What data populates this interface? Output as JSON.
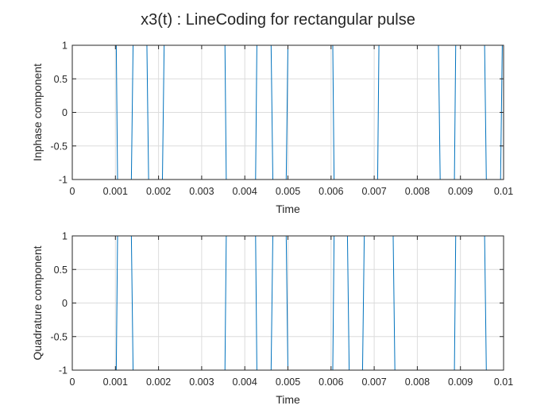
{
  "figure_title": "x3(t) : LineCoding for rectangular pulse",
  "colors": {
    "line": "#0072BD",
    "grid": "#dcdcdc",
    "axis": "#262626"
  },
  "chart_data": [
    {
      "type": "line",
      "title": "",
      "xlabel": "Time",
      "ylabel": "Inphase component",
      "xlim": [
        0,
        0.01
      ],
      "ylim": [
        -1,
        1
      ],
      "xticks": [
        0,
        0.001,
        0.002,
        0.003,
        0.004,
        0.005,
        0.006,
        0.007,
        0.008,
        0.009,
        0.01
      ],
      "xtick_labels": [
        "0",
        "0.001",
        "0.002",
        "0.003",
        "0.004",
        "0.005",
        "0.006",
        "0.007",
        "0.008",
        "0.009",
        "0.01"
      ],
      "yticks": [
        -1,
        -0.5,
        0,
        0.5,
        1
      ],
      "ytick_labels": [
        "-1",
        "-0.5",
        "0",
        "0.5",
        "1"
      ],
      "grid": true,
      "series": [
        {
          "x": [
            0,
            0.00102,
            0.00105,
            0.00137,
            0.00141,
            0.00173,
            0.00177,
            0.00209,
            0.00213,
            0.00354,
            0.00357,
            0.00425,
            0.00428,
            0.00461,
            0.00465,
            0.00496,
            0.005,
            0.00604,
            0.00607,
            0.00708,
            0.00711,
            0.00849,
            0.00853,
            0.00886,
            0.00889,
            0.00956,
            0.0096,
            0.00993,
            0.00997,
            0.01
          ],
          "y": [
            1,
            1,
            -1,
            -1,
            1,
            1,
            -1,
            -1,
            1,
            1,
            -1,
            -1,
            1,
            1,
            -1,
            -1,
            1,
            1,
            -1,
            -1,
            1,
            1,
            -1,
            -1,
            1,
            1,
            -1,
            -1,
            1,
            1
          ]
        }
      ]
    },
    {
      "type": "line",
      "title": "",
      "xlabel": "Time",
      "ylabel": "Quadrature component",
      "xlim": [
        0,
        0.01
      ],
      "ylim": [
        -1,
        1
      ],
      "xticks": [
        0,
        0.001,
        0.002,
        0.003,
        0.004,
        0.005,
        0.006,
        0.007,
        0.008,
        0.009,
        0.01
      ],
      "xtick_labels": [
        "0",
        "0.001",
        "0.002",
        "0.003",
        "0.004",
        "0.005",
        "0.006",
        "0.007",
        "0.008",
        "0.009",
        "0.01"
      ],
      "yticks": [
        -1,
        -0.5,
        0,
        0.5,
        1
      ],
      "ytick_labels": [
        "-1",
        "-0.5",
        "0",
        "0.5",
        "1"
      ],
      "grid": true,
      "series": [
        {
          "x": [
            0,
            0.00102,
            0.00105,
            0.00137,
            0.00141,
            0.00354,
            0.00357,
            0.00425,
            0.00428,
            0.00461,
            0.00465,
            0.00496,
            0.005,
            0.00604,
            0.00607,
            0.00638,
            0.00642,
            0.00673,
            0.00677,
            0.00744,
            0.00748,
            0.00886,
            0.00889,
            0.00956,
            0.0096,
            0.01
          ],
          "y": [
            -1,
            -1,
            1,
            1,
            -1,
            -1,
            1,
            1,
            -1,
            -1,
            1,
            1,
            -1,
            -1,
            1,
            1,
            -1,
            -1,
            1,
            1,
            -1,
            -1,
            1,
            1,
            -1,
            -1
          ]
        }
      ]
    }
  ]
}
